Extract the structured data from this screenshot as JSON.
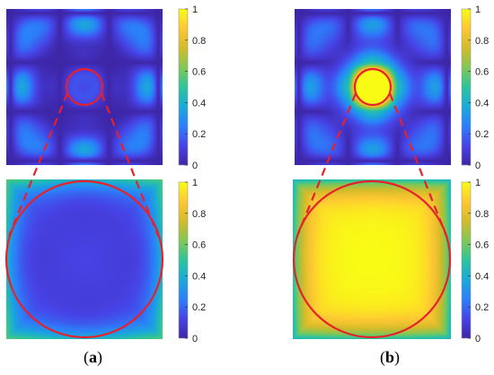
{
  "figure": {
    "panels": [
      {
        "label_open": "(",
        "label_letter": "a",
        "label_close": ")"
      },
      {
        "label_open": "(",
        "label_letter": "b",
        "label_close": ")"
      }
    ]
  },
  "colors": {
    "circle": "#e8202a",
    "colormap": [
      "#3e26a8",
      "#4743e6",
      "#2c7ffa",
      "#1aa9da",
      "#2dc49c",
      "#81c855",
      "#d3bb2a",
      "#fec833",
      "#f9fb15"
    ]
  },
  "chart_data": [
    {
      "type": "heatmap",
      "panel": "a",
      "view": "full",
      "colorbar": {
        "ticks": [
          0,
          0.2,
          0.4,
          0.6,
          0.8,
          1
        ],
        "tick_labels": [
          "0",
          "0.2",
          "0.4",
          "0.6",
          "0.8",
          "1"
        ],
        "range": [
          0,
          1
        ]
      },
      "center_value": 0.1,
      "annotation": "red circle marks central region, enlarged below"
    },
    {
      "type": "heatmap",
      "panel": "a",
      "view": "zoom",
      "colorbar": {
        "ticks": [
          0,
          0.2,
          0.4,
          0.6,
          0.8,
          1
        ],
        "tick_labels": [
          "0",
          "0.2",
          "0.4",
          "0.6",
          "0.8",
          "1"
        ],
        "range": [
          0,
          1
        ]
      },
      "center_value": 0.1,
      "corner_value": 0.45
    },
    {
      "type": "heatmap",
      "panel": "b",
      "view": "full",
      "colorbar": {
        "ticks": [
          0,
          0.2,
          0.4,
          0.6,
          0.8,
          1
        ],
        "tick_labels": [
          "0",
          "0.2",
          "0.4",
          "0.6",
          "0.8",
          "1"
        ],
        "range": [
          0,
          1
        ]
      },
      "center_value": 1.0,
      "annotation": "red circle marks central region, enlarged below"
    },
    {
      "type": "heatmap",
      "panel": "b",
      "view": "zoom",
      "colorbar": {
        "ticks": [
          0,
          0.2,
          0.4,
          0.6,
          0.8,
          1
        ],
        "tick_labels": [
          "0",
          "0.2",
          "0.4",
          "0.6",
          "0.8",
          "1"
        ],
        "range": [
          0,
          1
        ]
      },
      "center_value": 1.0,
      "corner_value": 0.55
    }
  ]
}
